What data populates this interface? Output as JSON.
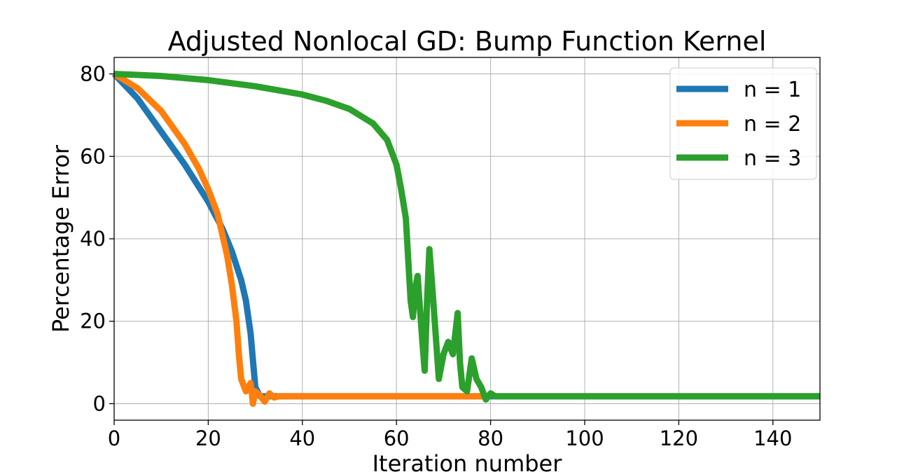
{
  "chart_data": {
    "type": "line",
    "title": "Adjusted Nonlocal GD: Bump Function Kernel",
    "xlabel": "Iteration number",
    "ylabel": "Percentage Error",
    "xlim": [
      0,
      150
    ],
    "ylim": [
      -4,
      84
    ],
    "xticks": [
      0,
      20,
      40,
      60,
      80,
      100,
      120,
      140
    ],
    "yticks": [
      0,
      20,
      40,
      60,
      80
    ],
    "grid": true,
    "legend_position": "top-right",
    "series": [
      {
        "name": "n = 1",
        "color": "#1f77b4",
        "points": [
          [
            0,
            80
          ],
          [
            5,
            74
          ],
          [
            10,
            66
          ],
          [
            15,
            58
          ],
          [
            20,
            49
          ],
          [
            23,
            42.5
          ],
          [
            25,
            37
          ],
          [
            27,
            30
          ],
          [
            28,
            25
          ],
          [
            29,
            17
          ],
          [
            30,
            4
          ],
          [
            31,
            1.8
          ],
          [
            150,
            1.8
          ]
        ]
      },
      {
        "name": "n = 2",
        "color": "#ff7f0e",
        "points": [
          [
            0,
            80
          ],
          [
            5,
            76.5
          ],
          [
            10,
            71
          ],
          [
            15,
            63
          ],
          [
            18,
            57
          ],
          [
            20,
            52
          ],
          [
            22,
            46
          ],
          [
            24,
            36
          ],
          [
            25,
            29
          ],
          [
            26,
            20
          ],
          [
            26.5,
            12
          ],
          [
            27,
            6
          ],
          [
            27.5,
            4.5
          ],
          [
            28,
            3
          ],
          [
            29,
            5
          ],
          [
            29.5,
            0
          ],
          [
            30,
            3
          ],
          [
            31,
            2
          ],
          [
            32,
            0.5
          ],
          [
            33,
            2.5
          ],
          [
            34,
            1.5
          ],
          [
            35,
            1.8
          ],
          [
            80,
            1.8
          ]
        ]
      },
      {
        "name": "n = 3",
        "color": "#2ca02c",
        "points": [
          [
            0,
            80
          ],
          [
            10,
            79.5
          ],
          [
            20,
            78.5
          ],
          [
            30,
            77
          ],
          [
            35,
            76
          ],
          [
            40,
            75
          ],
          [
            45,
            73.5
          ],
          [
            50,
            71.5
          ],
          [
            55,
            68
          ],
          [
            58,
            64
          ],
          [
            60,
            58
          ],
          [
            61,
            52
          ],
          [
            62,
            45
          ],
          [
            63,
            25
          ],
          [
            63.5,
            21
          ],
          [
            64,
            28
          ],
          [
            64.5,
            31
          ],
          [
            65,
            23
          ],
          [
            65.5,
            15
          ],
          [
            66,
            8
          ],
          [
            66.5,
            25
          ],
          [
            67,
            37.5
          ],
          [
            67.5,
            30
          ],
          [
            68,
            22
          ],
          [
            69,
            6
          ],
          [
            70,
            12
          ],
          [
            71,
            15
          ],
          [
            72,
            12
          ],
          [
            73,
            22
          ],
          [
            73.5,
            10
          ],
          [
            74,
            4
          ],
          [
            75,
            3
          ],
          [
            76,
            11
          ],
          [
            77,
            6
          ],
          [
            78,
            4
          ],
          [
            79,
            1
          ],
          [
            80,
            2.5
          ],
          [
            81,
            1.8
          ],
          [
            150,
            1.8
          ]
        ]
      }
    ],
    "legend": [
      "n = 1",
      "n = 2",
      "n = 3"
    ]
  }
}
